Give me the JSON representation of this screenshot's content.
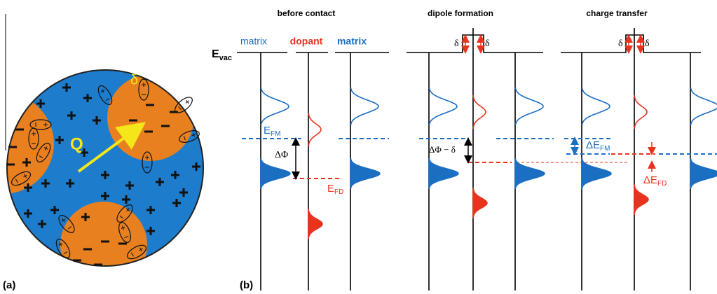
{
  "panel_a": {
    "label": "(a)",
    "charge_label": "Q",
    "dipole_label": "δ"
  },
  "panel_b": {
    "label": "(b)",
    "vacuum_level": {
      "symbol": "E",
      "subscript": "vac"
    },
    "stages": [
      {
        "title": "before contact",
        "matrix_left": "matrix",
        "dopant": "dopant",
        "matrix_right": "matrix",
        "fermi_matrix": {
          "symbol": "E",
          "subscript": "FM"
        },
        "fermi_dopant": {
          "symbol": "E",
          "subscript": "FD"
        },
        "offset": "ΔΦ"
      },
      {
        "title": "dipole formation",
        "offset": "ΔΦ − δ",
        "dipole_left": "δ",
        "dipole_right": "δ"
      },
      {
        "title": "charge transfer",
        "dipole_left": "δ",
        "dipole_right": "δ",
        "fermi_matrix_shift": {
          "symbol": "ΔE",
          "subscript": "FM"
        },
        "fermi_dopant_shift": {
          "symbol": "ΔE",
          "subscript": "FD"
        }
      }
    ]
  }
}
